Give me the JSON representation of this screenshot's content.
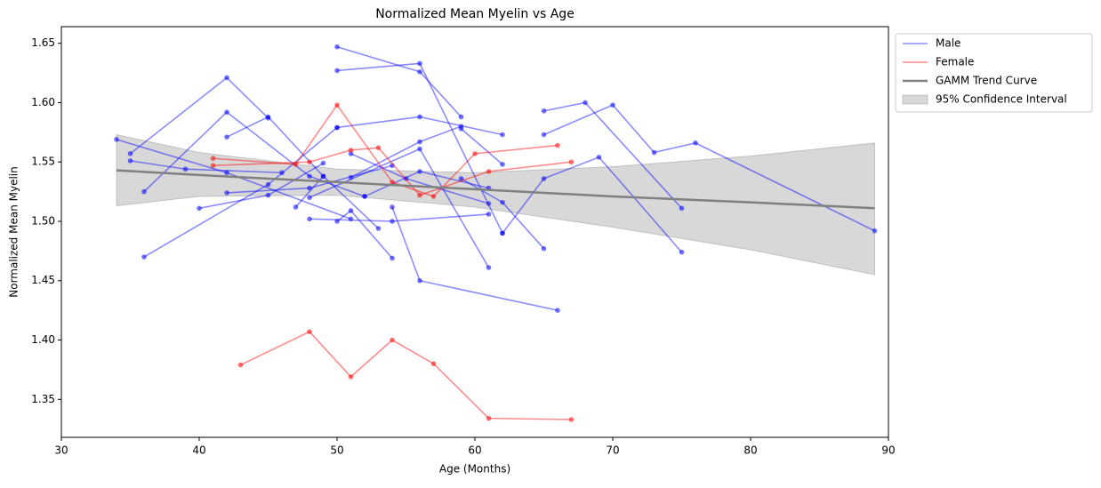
{
  "chart_data": {
    "type": "line",
    "title": "Normalized Mean Myelin vs Age",
    "x_label": "Age (Months)",
    "y_label": "Normalized Mean Myelin",
    "xlim": [
      30,
      90
    ],
    "ylim": [
      1.318,
      1.664
    ],
    "xticks": [
      30,
      40,
      50,
      60,
      70,
      80,
      90
    ],
    "yticks": [
      1.35,
      {
        "value": 1.4,
        "label": "1.40"
      },
      1.45,
      {
        "value": 1.5,
        "label": "1.50"
      },
      1.55,
      {
        "value": 1.6,
        "label": "1.60"
      },
      1.65
    ],
    "series": [
      {
        "name": "Male",
        "color": "#0000ff",
        "subjects": [
          {
            "x": [
              34,
              42,
              51
            ],
            "values": [
              1.569,
              1.541,
              1.502
            ]
          },
          {
            "x": [
              35,
              42,
              45
            ],
            "values": [
              1.557,
              1.621,
              1.587
            ]
          },
          {
            "x": [
              35,
              39,
              46
            ],
            "values": [
              1.551,
              1.544,
              1.541
            ]
          },
          {
            "x": [
              36,
              42,
              48,
              52
            ],
            "values": [
              1.525,
              1.592,
              1.538,
              1.521
            ]
          },
          {
            "x": [
              36,
              45,
              50
            ],
            "values": [
              1.47,
              1.531,
              1.579
            ]
          },
          {
            "x": [
              40,
              45,
              49
            ],
            "values": [
              1.511,
              1.522,
              1.549
            ]
          },
          {
            "x": [
              42,
              45,
              49
            ],
            "values": [
              1.571,
              1.588,
              1.538
            ]
          },
          {
            "x": [
              42,
              48,
              54
            ],
            "values": [
              1.524,
              1.528,
              1.547
            ]
          },
          {
            "x": [
              47,
              49,
              53
            ],
            "values": [
              1.512,
              1.538,
              1.494
            ]
          },
          {
            "x": [
              48,
              54,
              61
            ],
            "values": [
              1.502,
              1.5,
              1.506
            ]
          },
          {
            "x": [
              50,
              56,
              59
            ],
            "values": [
              1.647,
              1.626,
              1.588
            ]
          },
          {
            "x": [
              50,
              56,
              62
            ],
            "values": [
              1.627,
              1.633,
              1.49
            ]
          },
          {
            "x": [
              50,
              56,
              62
            ],
            "values": [
              1.579,
              1.588,
              1.573
            ]
          },
          {
            "x": [
              50,
              51,
              54
            ],
            "values": [
              1.5,
              1.509,
              1.469
            ]
          },
          {
            "x": [
              51,
              55,
              61
            ],
            "values": [
              1.557,
              1.536,
              1.515
            ]
          },
          {
            "x": [
              51,
              56,
              59
            ],
            "values": [
              1.537,
              1.567,
              1.58
            ]
          },
          {
            "x": [
              48,
              56,
              61
            ],
            "values": [
              1.52,
              1.561,
              1.461
            ]
          },
          {
            "x": [
              52,
              56,
              61
            ],
            "values": [
              1.521,
              1.542,
              1.528
            ]
          },
          {
            "x": [
              54,
              56,
              66
            ],
            "values": [
              1.512,
              1.45,
              1.425
            ]
          },
          {
            "x": [
              59,
              62,
              65
            ],
            "values": [
              1.536,
              1.516,
              1.477
            ]
          },
          {
            "x": [
              59,
              62
            ],
            "values": [
              1.578,
              1.548
            ]
          },
          {
            "x": [
              62,
              65,
              69,
              75
            ],
            "values": [
              1.49,
              1.536,
              1.554,
              1.474
            ]
          },
          {
            "x": [
              65,
              68,
              75
            ],
            "values": [
              1.593,
              1.6,
              1.511
            ]
          },
          {
            "x": [
              65,
              70,
              73,
              76,
              89
            ],
            "values": [
              1.573,
              1.598,
              1.558,
              1.566,
              1.492
            ]
          }
        ]
      },
      {
        "name": "Female",
        "color": "#ff0000",
        "subjects": [
          {
            "x": [
              41,
              47,
              50,
              54,
              57,
              60,
              66
            ],
            "values": [
              1.553,
              1.548,
              1.598,
              1.533,
              1.521,
              1.557,
              1.564
            ]
          },
          {
            "x": [
              41,
              48,
              51,
              53,
              56,
              61,
              67
            ],
            "values": [
              1.547,
              1.55,
              1.56,
              1.562,
              1.522,
              1.542,
              1.55
            ]
          },
          {
            "x": [
              43,
              48,
              51,
              54,
              57,
              61,
              67
            ],
            "values": [
              1.379,
              1.407,
              1.369,
              1.4,
              1.38,
              1.334,
              1.333
            ]
          }
        ]
      }
    ],
    "trend": {
      "name": "GAMM Trend Curve",
      "color": "#808080",
      "x": [
        34,
        40,
        50,
        60,
        70,
        80,
        89
      ],
      "values": [
        1.543,
        1.539,
        1.533,
        1.527,
        1.521,
        1.516,
        1.511
      ]
    },
    "band": {
      "name": "95% Confidence Interval",
      "color": "#a9a9a9",
      "x": [
        34,
        40,
        50,
        60,
        70,
        80,
        89
      ],
      "lower": [
        1.513,
        1.521,
        1.522,
        1.512,
        1.495,
        1.476,
        1.455
      ],
      "upper": [
        1.573,
        1.558,
        1.544,
        1.541,
        1.546,
        1.555,
        1.566
      ]
    },
    "legend": "upper left outside"
  }
}
